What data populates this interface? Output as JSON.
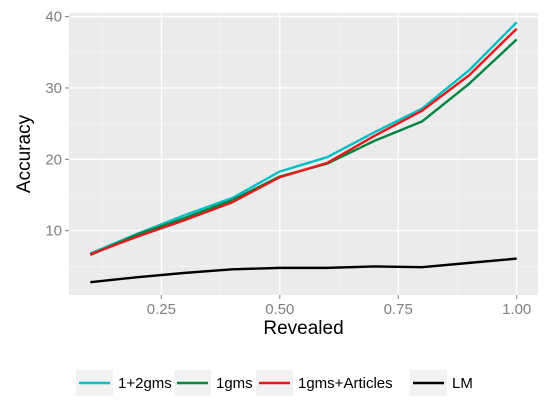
{
  "chart_data": {
    "type": "line",
    "xlabel": "Revealed",
    "ylabel": "Accuracy",
    "xlim": [
      0.055,
      1.045
    ],
    "ylim": [
      1.0,
      40.5
    ],
    "xticks": [
      0.25,
      0.5,
      0.75,
      1.0
    ],
    "xtick_labels": [
      "0.25",
      "0.50",
      "0.75",
      "1.00"
    ],
    "yticks": [
      10,
      20,
      30,
      40
    ],
    "ytick_labels": [
      "10",
      "20",
      "30",
      "40"
    ],
    "grid": true,
    "background": "#ebebeb",
    "legend_position": "bottom",
    "x": [
      0.1,
      0.2,
      0.3,
      0.4,
      0.5,
      0.6,
      0.7,
      0.8,
      0.9,
      1.0
    ],
    "series": [
      {
        "name": "1+2gms",
        "color": "#00bfc4",
        "values": [
          6.8,
          9.6,
          12.2,
          14.6,
          18.3,
          20.3,
          23.8,
          27.1,
          32.5,
          39.2
        ]
      },
      {
        "name": "1gms",
        "color": "#00843f",
        "values": [
          6.6,
          9.5,
          11.8,
          14.3,
          17.6,
          19.4,
          22.6,
          25.3,
          30.6,
          36.8
        ]
      },
      {
        "name": "1gms+Articles",
        "color": "#e41a1c",
        "values": [
          6.7,
          9.2,
          11.5,
          14.0,
          17.5,
          19.5,
          23.3,
          26.8,
          31.8,
          38.3
        ]
      },
      {
        "name": "LM",
        "color": "#000000",
        "values": [
          2.8,
          3.5,
          4.1,
          4.6,
          4.8,
          4.8,
          5.0,
          4.9,
          5.5,
          6.1
        ]
      }
    ]
  }
}
